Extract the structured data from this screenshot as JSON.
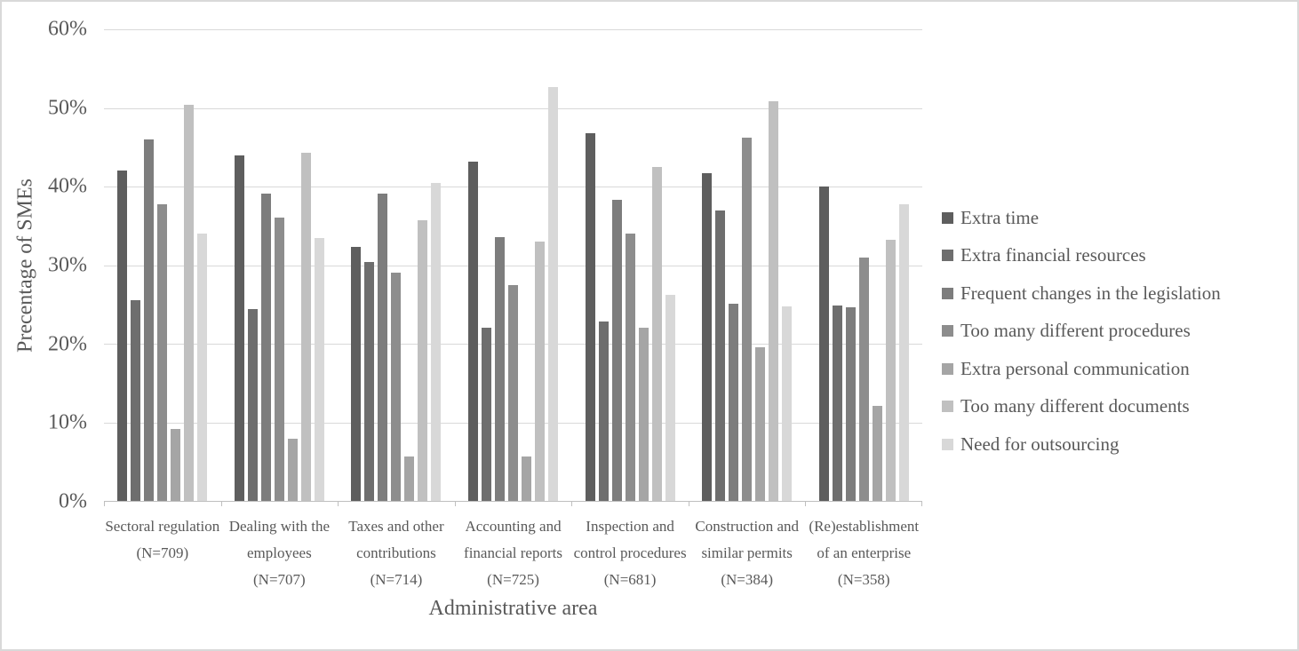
{
  "chart_data": {
    "type": "bar",
    "title": "",
    "xlabel": "Administrative area",
    "ylabel": "Precentage of SMEs",
    "ylim": [
      0,
      60
    ],
    "grid": true,
    "legend_position": "right",
    "yticks": [
      "60%",
      "50%",
      "40%",
      "30%",
      "20%",
      "10%",
      "0%"
    ],
    "categories": [
      {
        "name": "Sectoral regulation",
        "n": "(N=709)",
        "label_lines": [
          "Sectoral regulation",
          "(N=709)"
        ]
      },
      {
        "name": "Dealing with the employees",
        "n": "(N=707)",
        "label_lines": [
          "Dealing with the",
          "employees",
          "(N=707)"
        ]
      },
      {
        "name": "Taxes and other contributions",
        "n": "(N=714)",
        "label_lines": [
          "Taxes and other",
          "contributions",
          "(N=714)"
        ]
      },
      {
        "name": "Accounting and financial reports",
        "n": "(N=725)",
        "label_lines": [
          "Accounting and",
          "financial reports",
          "(N=725)"
        ]
      },
      {
        "name": "Inspection and control procedures",
        "n": "(N=681)",
        "label_lines": [
          "Inspection and",
          "control procedures",
          "(N=681)"
        ]
      },
      {
        "name": "Construction and similar permits",
        "n": "(N=384)",
        "label_lines": [
          "Construction and",
          "similar permits",
          "(N=384)"
        ]
      },
      {
        "name": "(Re)establishment of an enterprise",
        "n": "(N=358)",
        "label_lines": [
          "(Re)establishment",
          "of an enterprise",
          "(N=358)"
        ]
      }
    ],
    "series": [
      {
        "name": "Extra time",
        "color": "#5e5e5e",
        "values": [
          42.0,
          44.0,
          32.3,
          43.2,
          46.8,
          41.7,
          40.0
        ]
      },
      {
        "name": "Extra financial resources",
        "color": "#6e6e6e",
        "values": [
          25.5,
          24.4,
          30.4,
          22.0,
          22.8,
          37.0,
          24.9
        ]
      },
      {
        "name": "Frequent changes in the legislation",
        "color": "#7d7d7d",
        "values": [
          46.0,
          39.1,
          39.1,
          33.6,
          38.3,
          25.1,
          24.6
        ]
      },
      {
        "name": "Too many different procedures",
        "color": "#8d8d8d",
        "values": [
          37.7,
          36.1,
          29.0,
          27.5,
          34.0,
          46.2,
          31.0
        ]
      },
      {
        "name": "Extra personal communication",
        "color": "#a5a5a5",
        "values": [
          9.2,
          7.9,
          5.6,
          5.6,
          22.0,
          19.5,
          12.1
        ]
      },
      {
        "name": "Too many different documents",
        "color": "#c0c0c0",
        "values": [
          50.4,
          44.3,
          35.7,
          33.0,
          42.5,
          50.8,
          33.2
        ]
      },
      {
        "name": "Need for outsourcing",
        "color": "#d8d8d8",
        "values": [
          34.0,
          33.5,
          40.4,
          52.7,
          26.2,
          24.8,
          37.7
        ]
      }
    ],
    "colors": {
      "text": "#595959",
      "gridline": "#d9d9d9",
      "axis_line": "#bfbfbf",
      "frame_border": "#d9d9d9",
      "background": "#ffffff"
    }
  }
}
